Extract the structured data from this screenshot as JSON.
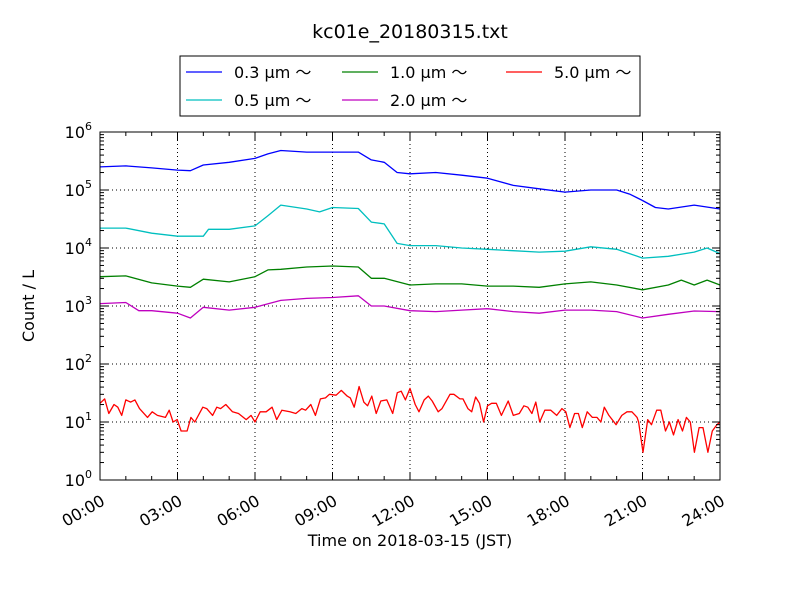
{
  "chart_data": {
    "type": "line",
    "title": "kc01e_20180315.txt",
    "xlabel": "Time on 2018-03-15 (JST)",
    "ylabel": "Count / L",
    "xlim": [
      0,
      24
    ],
    "ylim": [
      1,
      1000000
    ],
    "yscale": "log",
    "grid": true,
    "legend_placement": "top-center",
    "x_tick_labels": [
      "00:00",
      "03:00",
      "06:00",
      "09:00",
      "12:00",
      "15:00",
      "18:00",
      "21:00",
      "24:00"
    ],
    "y_tick_exponents": [
      "0",
      "1",
      "2",
      "3",
      "4",
      "5",
      "6"
    ],
    "series": [
      {
        "name": "0.3 μm ～",
        "color": "#0000ff",
        "x": [
          0,
          1,
          2,
          3,
          3.5,
          4,
          5,
          6,
          6.5,
          7,
          8,
          9,
          10,
          10.5,
          11,
          11.5,
          12,
          13,
          14,
          15,
          16,
          17,
          18,
          19,
          20,
          20.5,
          21,
          21.5,
          22,
          23,
          24
        ],
        "y": [
          250000,
          260000,
          240000,
          220000,
          215000,
          270000,
          300000,
          350000,
          420000,
          480000,
          450000,
          450000,
          450000,
          330000,
          300000,
          200000,
          190000,
          200000,
          180000,
          160000,
          120000,
          105000,
          92000,
          100000,
          100000,
          85000,
          66000,
          50000,
          47000,
          55000,
          47000
        ]
      },
      {
        "name": "0.5 μm ～",
        "color": "#00bfbf",
        "x": [
          0,
          1,
          2,
          3,
          4,
          4.2,
          5,
          6,
          6.5,
          7,
          8,
          8.5,
          9,
          10,
          10.5,
          11,
          11.5,
          12,
          13,
          14,
          15,
          16,
          17,
          18,
          19,
          20,
          20.5,
          21,
          22,
          23,
          23.5,
          24
        ],
        "y": [
          22000,
          22000,
          18000,
          16000,
          16000,
          21000,
          21000,
          24000,
          36000,
          55000,
          47000,
          42000,
          50000,
          48000,
          28000,
          26000,
          12000,
          11000,
          11000,
          10000,
          9500,
          9000,
          8500,
          8800,
          10500,
          9500,
          8000,
          6700,
          7200,
          8500,
          10000,
          8000
        ]
      },
      {
        "name": "1.0 μm ～",
        "color": "#008000",
        "x": [
          0,
          1,
          2,
          3,
          3.5,
          4,
          5,
          6,
          6.5,
          7,
          8,
          9,
          10,
          10.5,
          11,
          12,
          13,
          14,
          15,
          16,
          17,
          18,
          19,
          20,
          21,
          22,
          22.5,
          23,
          23.5,
          24
        ],
        "y": [
          3200,
          3300,
          2500,
          2200,
          2100,
          2900,
          2600,
          3200,
          4200,
          4300,
          4700,
          4900,
          4700,
          3000,
          3000,
          2300,
          2400,
          2400,
          2200,
          2200,
          2100,
          2400,
          2600,
          2300,
          1900,
          2300,
          2800,
          2300,
          2800,
          2300
        ]
      },
      {
        "name": "2.0 μm ～",
        "color": "#bf00bf",
        "x": [
          0,
          1,
          1.5,
          2,
          3,
          3.5,
          4,
          5,
          6,
          7,
          8,
          9,
          10,
          10.5,
          11,
          12,
          13,
          14,
          15,
          16,
          17,
          18,
          19,
          20,
          21,
          22,
          23,
          24
        ],
        "y": [
          1100,
          1150,
          830,
          830,
          750,
          620,
          950,
          850,
          950,
          1250,
          1350,
          1400,
          1500,
          1000,
          1000,
          830,
          800,
          850,
          900,
          800,
          750,
          850,
          850,
          800,
          620,
          720,
          820,
          800
        ]
      },
      {
        "name": "5.0 μm ～",
        "color": "#ff0000",
        "x": [
          0,
          0.18,
          0.34,
          0.54,
          0.69,
          0.84,
          1.0,
          1.19,
          1.35,
          1.53,
          1.84,
          2.02,
          2.22,
          2.53,
          2.68,
          2.83,
          2.99,
          3.14,
          3.37,
          3.52,
          3.67,
          3.98,
          4.13,
          4.36,
          4.52,
          4.67,
          4.87,
          5.13,
          5.36,
          5.66,
          5.85,
          6.0,
          6.2,
          6.43,
          6.66,
          6.84,
          7.04,
          7.35,
          7.58,
          7.81,
          7.96,
          8.16,
          8.34,
          8.53,
          8.73,
          8.88,
          9.14,
          9.34,
          9.57,
          9.69,
          9.84,
          10.03,
          10.21,
          10.36,
          10.52,
          10.69,
          10.87,
          11.1,
          11.33,
          11.51,
          11.66,
          11.82,
          12.0,
          12.2,
          12.35,
          12.55,
          12.71,
          12.86,
          13.09,
          13.24,
          13.55,
          13.7,
          13.93,
          14.05,
          14.24,
          14.39,
          14.54,
          14.69,
          14.85,
          15.0,
          15.16,
          15.34,
          15.54,
          15.8,
          16.0,
          16.23,
          16.41,
          16.56,
          16.72,
          16.87,
          17.02,
          17.22,
          17.45,
          17.68,
          17.88,
          18.03,
          18.19,
          18.37,
          18.52,
          18.67,
          18.86,
          19.06,
          19.24,
          19.39,
          19.52,
          19.7,
          19.98,
          20.2,
          20.4,
          20.59,
          20.79,
          20.85,
          21.02,
          21.2,
          21.35,
          21.55,
          21.71,
          21.89,
          22.04,
          22.2,
          22.38,
          22.55,
          22.7,
          22.85,
          23.01,
          23.19,
          23.34,
          23.53,
          23.7,
          23.88,
          24.0
        ],
        "y": [
          21,
          25,
          14,
          20,
          18,
          13,
          24,
          22,
          24,
          17,
          12,
          15,
          13,
          12,
          16,
          10,
          11,
          7,
          7,
          12,
          10,
          18,
          17,
          13,
          18,
          17,
          20,
          15,
          14,
          11,
          13,
          10,
          15,
          15,
          18,
          11,
          16,
          15,
          14,
          17,
          16,
          20,
          13,
          25,
          26,
          30,
          29,
          35,
          28,
          26,
          18,
          41,
          22,
          19,
          28,
          14,
          23,
          24,
          14,
          32,
          34,
          24,
          38,
          20,
          15,
          24,
          28,
          23,
          15,
          17,
          30,
          30,
          25,
          25,
          17,
          15,
          27,
          21,
          10,
          19,
          21,
          21,
          13,
          23,
          13,
          14,
          19,
          18,
          14,
          22,
          10,
          16,
          16,
          13,
          17,
          15,
          8,
          14,
          14,
          8,
          15,
          12,
          12,
          10,
          18,
          13,
          9,
          13,
          15,
          15,
          12,
          10,
          3,
          11,
          9,
          16,
          16,
          7,
          10,
          6,
          11,
          7,
          12,
          10,
          3,
          8,
          8,
          3,
          7,
          9,
          10
        ]
      }
    ]
  }
}
